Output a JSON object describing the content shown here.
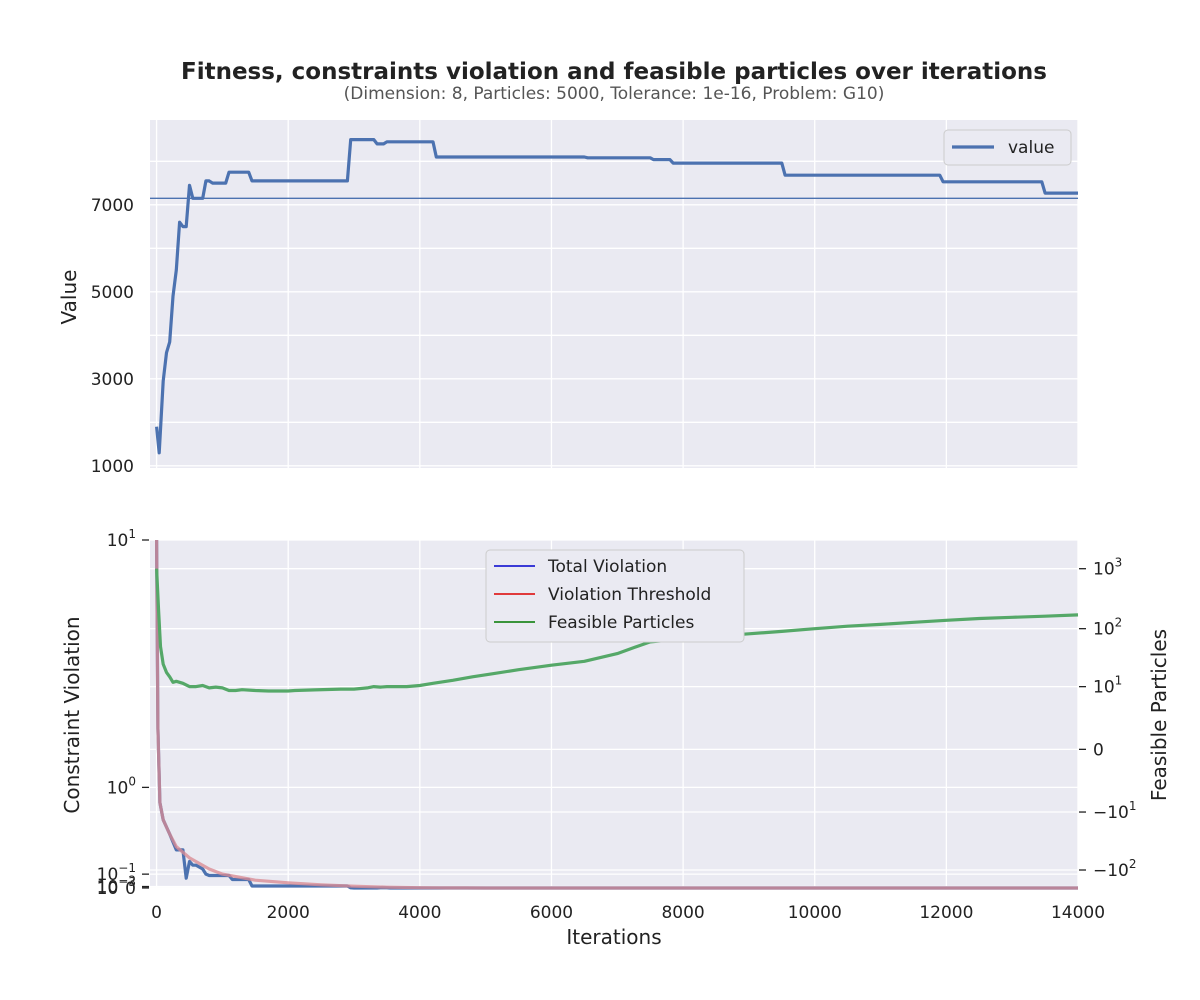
{
  "chart_data": {
    "title": "Fitness, constraints violation and feasible particles over iterations",
    "subtitle": "(Dimension: 8, Particles: 5000, Tolerance: 1e-16, Problem: G10)",
    "xlabel": "Iterations",
    "xlim": [
      -100,
      14000
    ],
    "xticks": [
      "0",
      "2000",
      "4000",
      "6000",
      "8000",
      "10000",
      "12000",
      "14000"
    ],
    "top": {
      "type": "line",
      "ylabel": "Value",
      "ylim": [
        950,
        8950
      ],
      "yticks": [
        {
          "v": 1000,
          "label": "1000"
        },
        {
          "v": 3000,
          "label": "3000"
        },
        {
          "v": 5000,
          "label": "5000"
        },
        {
          "v": 7000,
          "label": "7000"
        }
      ],
      "grid_y_extra": [
        2000,
        4000,
        6000,
        8000
      ],
      "reference_line": 7150,
      "legend": {
        "placement": "upper right",
        "entries": [
          "value"
        ]
      },
      "series": [
        {
          "name": "value",
          "color": "#4C72B0",
          "x": [
            0,
            40,
            100,
            150,
            200,
            250,
            300,
            350,
            400,
            450,
            500,
            550,
            600,
            700,
            750,
            800,
            850,
            1000,
            1050,
            1100,
            1200,
            1400,
            1450,
            2900,
            2950,
            3300,
            3350,
            3450,
            3500,
            4200,
            4250,
            6500,
            6550,
            7500,
            7550,
            7800,
            7850,
            9500,
            9550,
            11900,
            11950,
            13450,
            13500,
            14000
          ],
          "y": [
            1900,
            1300,
            2950,
            3600,
            3850,
            4900,
            5500,
            6600,
            6500,
            6500,
            7450,
            7150,
            7150,
            7150,
            7550,
            7550,
            7500,
            7500,
            7500,
            7750,
            7750,
            7750,
            7550,
            7550,
            8500,
            8500,
            8400,
            8400,
            8450,
            8450,
            8100,
            8100,
            8080,
            8080,
            8040,
            8040,
            7960,
            7960,
            7680,
            7680,
            7530,
            7530,
            7270,
            7270
          ]
        }
      ]
    },
    "bottom": {
      "type": "line",
      "ylabel": "Constraint Violation",
      "left_scale": "symlog",
      "left_ylim": [
        -0.0002,
        10
      ],
      "left_yticks": [
        {
          "v": 10,
          "base": "10",
          "exp": "1"
        },
        {
          "v": 1,
          "base": "10",
          "exp": "0"
        },
        {
          "v": 0.1,
          "base": "10",
          "exp": "−1"
        },
        {
          "v": 0.01,
          "base": "10",
          "exp": "−2"
        },
        {
          "v": 0.001,
          "base": "10",
          "exp": "−3"
        },
        {
          "v": 0,
          "base": "0",
          "exp": ""
        }
      ],
      "y2label": "Feasible Particles",
      "right_scale": "symlog",
      "right_ylim": [
        -200,
        3000
      ],
      "right_yticks": [
        {
          "v": 1000,
          "base": "10",
          "exp": "3",
          "sign": ""
        },
        {
          "v": 100,
          "base": "10",
          "exp": "2",
          "sign": ""
        },
        {
          "v": 10,
          "base": "10",
          "exp": "1",
          "sign": ""
        },
        {
          "v": 0,
          "base": "0",
          "exp": "",
          "sign": ""
        },
        {
          "v": -10,
          "base": "10",
          "exp": "1",
          "sign": "−"
        },
        {
          "v": -100,
          "base": "10",
          "exp": "2",
          "sign": "−"
        }
      ],
      "legend": {
        "placement": "upper center",
        "entries": [
          "Total Violation",
          "Violation Threshold",
          "Feasible Particles"
        ]
      },
      "legend_colors": [
        "#0000CC",
        "#DD0000",
        "#007700"
      ],
      "series": [
        {
          "name": "Total Violation",
          "axis": "left",
          "color": "#4C72B0",
          "x": [
            0,
            20,
            50,
            100,
            200,
            300,
            400,
            450,
            500,
            550,
            600,
            700,
            750,
            800,
            1100,
            1150,
            1400,
            1450,
            2900,
            2950,
            3000,
            3350,
            3400,
            3500,
            3550,
            14000
          ],
          "y": [
            10,
            2,
            0.8,
            0.6,
            0.45,
            0.3,
            0.3,
            0.07,
            0.2,
            0.17,
            0.17,
            0.14,
            0.1,
            0.09,
            0.09,
            0.06,
            0.06,
            0.0135,
            0.0135,
            0.001,
            0,
            0,
            0.0015,
            0.0015,
            0,
            0
          ]
        },
        {
          "name": "Violation Threshold",
          "axis": "left",
          "color": "#DD8452",
          "x": [
            0,
            20,
            50,
            100,
            200,
            300,
            500,
            800,
            1000,
            1500,
            2000,
            2500,
            3000,
            3500,
            4000,
            4300,
            4400,
            4500,
            4700,
            5000,
            5300,
            5600,
            6000,
            14000
          ],
          "y": [
            10,
            2,
            0.8,
            0.6,
            0.45,
            0.33,
            0.23,
            0.14,
            0.1,
            0.055,
            0.036,
            0.022,
            0.012,
            0.005,
            0.0019,
            0.0011,
            0.0008,
            0.0004,
            0.0002,
            8e-05,
            2e-05,
            5e-06,
            0,
            0
          ]
        },
        {
          "name": "Feasible Particles",
          "axis": "right",
          "color": "#55A868",
          "x": [
            0,
            30,
            60,
            100,
            150,
            200,
            250,
            300,
            400,
            500,
            600,
            700,
            800,
            900,
            1000,
            1100,
            1200,
            1300,
            1500,
            1700,
            2000,
            2100,
            2400,
            2800,
            3000,
            3200,
            3300,
            3400,
            3500,
            3800,
            4000,
            4200,
            4500,
            4800,
            5100,
            5500,
            6000,
            6500,
            7000,
            7300,
            7500,
            7700,
            8000,
            8500,
            9000,
            9500,
            10000,
            10500,
            11000,
            11500,
            12000,
            12500,
            13000,
            13500,
            14000
          ],
          "y": [
            1000,
            200,
            50,
            25,
            18,
            15,
            12,
            12.5,
            11.5,
            10,
            10,
            10.5,
            9.5,
            9.8,
            9.5,
            8.5,
            8.5,
            8.8,
            8.5,
            8.3,
            8.3,
            8.5,
            8.7,
            9,
            9,
            9.5,
            10,
            9.8,
            10,
            10,
            10.5,
            11.5,
            13,
            15,
            17,
            20,
            24,
            28,
            38,
            50,
            60,
            63,
            68,
            75,
            82,
            90,
            100,
            110,
            118,
            128,
            138,
            148,
            155,
            162,
            170
          ]
        }
      ]
    }
  }
}
